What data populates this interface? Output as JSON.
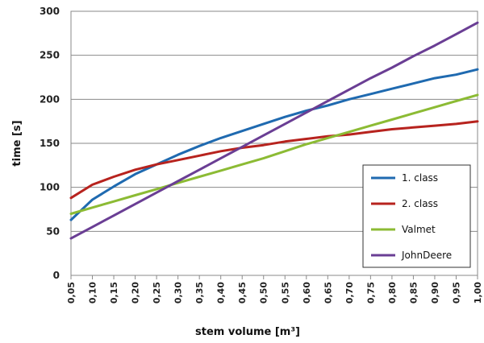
{
  "chart_data": {
    "type": "line",
    "xlabel": "stem volume [m³]",
    "ylabel": "time [s]",
    "x": [
      "0,05",
      "0,10",
      "0,15",
      "0,20",
      "0,25",
      "0,30",
      "0,35",
      "0,40",
      "0,45",
      "0,50",
      "0,55",
      "0,60",
      "0,65",
      "0,70",
      "0,75",
      "0,80",
      "0,85",
      "0,90",
      "0,95",
      "1,00"
    ],
    "x_values": [
      0.05,
      0.1,
      0.15,
      0.2,
      0.25,
      0.3,
      0.35,
      0.4,
      0.45,
      0.5,
      0.55,
      0.6,
      0.65,
      0.7,
      0.75,
      0.8,
      0.85,
      0.9,
      0.95,
      1.0
    ],
    "ylim": [
      0,
      300
    ],
    "yticks": [
      "0",
      "50",
      "100",
      "150",
      "200",
      "250",
      "300"
    ],
    "ytick_values": [
      0,
      50,
      100,
      150,
      200,
      250,
      300
    ],
    "grid": true,
    "legend_position": "bottom-right",
    "series": [
      {
        "name": "1. class",
        "color": "#1f6ab0",
        "values": [
          63,
          86,
          101,
          115,
          126,
          137,
          147,
          156,
          164,
          172,
          180,
          187,
          193,
          200,
          206,
          212,
          218,
          224,
          228,
          234
        ]
      },
      {
        "name": "2. class",
        "color": "#b7231e",
        "values": [
          88,
          103,
          112,
          120,
          126,
          131,
          136,
          141,
          145,
          148,
          152,
          155,
          158,
          160,
          163,
          166,
          168,
          170,
          172,
          175
        ]
      },
      {
        "name": "Valmet",
        "color": "#8cbb34",
        "values": [
          70,
          77,
          84,
          91,
          98,
          105,
          112,
          119,
          126,
          133,
          141,
          149,
          156,
          163,
          170,
          177,
          184,
          191,
          198,
          205
        ]
      },
      {
        "name": "JohnDeere",
        "color": "#6a3e94",
        "values": [
          42,
          55,
          68,
          81,
          94,
          107,
          120,
          133,
          146,
          159,
          172,
          185,
          198,
          211,
          224,
          236,
          249,
          261,
          274,
          287
        ]
      }
    ]
  }
}
